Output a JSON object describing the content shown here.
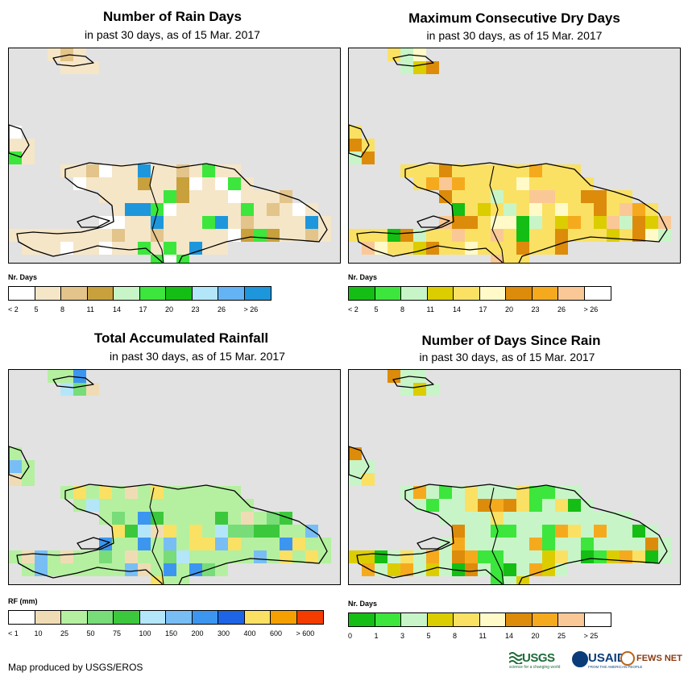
{
  "panels": [
    {
      "id": "rain-days",
      "title": "Number of Rain Days",
      "subtitle": "in past 30 days, as of 15 Mar. 2017",
      "legend_title": "Nr. Days",
      "legend_colors": [
        "#ffffff",
        "#f5e6c8",
        "#e3c48a",
        "#c8a03c",
        "#c8f5c8",
        "#3ce63c",
        "#14be14",
        "#b4e6fa",
        "#64b4f5",
        "#1e96dc"
      ],
      "legend_labels": [
        "< 2",
        "5",
        "8",
        "11",
        "14",
        "17",
        "20",
        "23",
        "26",
        "> 26"
      ],
      "base_color": "#f5e6c8",
      "accents": [
        "#e3c48a",
        "#c8a03c",
        "#ffffff",
        "#3ce63c",
        "#1e96dc"
      ]
    },
    {
      "id": "dry-days",
      "title": "Maximum Consecutive Dry Days",
      "subtitle": "in past 30 days, as of 15 Mar. 2017",
      "legend_title": "Nr. Days",
      "legend_colors": [
        "#14be14",
        "#3ce63c",
        "#c8f5c8",
        "#dccd00",
        "#fae164",
        "#fffac8",
        "#dc8c0a",
        "#f5aa1e",
        "#fac896",
        "#ffffff"
      ],
      "legend_labels": [
        "< 2",
        "5",
        "8",
        "11",
        "14",
        "17",
        "20",
        "23",
        "26",
        "> 26"
      ],
      "base_color": "#fae164",
      "accents": [
        "#fffac8",
        "#dc8c0a",
        "#f5aa1e",
        "#c8f5c8",
        "#14be14",
        "#dccd00",
        "#fac896"
      ]
    },
    {
      "id": "rainfall",
      "title": "Total Accumulated Rainfall",
      "subtitle": "in past 30 days, as of 15 Mar. 2017",
      "legend_title": "RF (mm)",
      "legend_colors": [
        "#ffffff",
        "#f0dcb4",
        "#b4f0a0",
        "#78dc78",
        "#3cc83c",
        "#b4e6fa",
        "#78bef5",
        "#3c96f0",
        "#1e64e6",
        "#fae164",
        "#f5a000",
        "#f53c00"
      ],
      "legend_labels": [
        "< 1",
        "10",
        "25",
        "50",
        "75",
        "100",
        "150",
        "200",
        "300",
        "400",
        "600",
        "> 600"
      ],
      "base_color": "#b4f0a0",
      "accents": [
        "#78dc78",
        "#3cc83c",
        "#b4e6fa",
        "#78bef5",
        "#3c96f0",
        "#f0dcb4",
        "#fae164"
      ]
    },
    {
      "id": "since-rain",
      "title": "Number of Days Since Rain",
      "subtitle": "in past 30 days, as of 15 Mar. 2017",
      "legend_title": "Nr. Days",
      "legend_colors": [
        "#14be14",
        "#3ce63c",
        "#c8f5c8",
        "#dccd00",
        "#fae164",
        "#fffac8",
        "#dc8c0a",
        "#f5aa1e",
        "#fac896",
        "#ffffff"
      ],
      "legend_labels": [
        "0",
        "1",
        "3",
        "5",
        "8",
        "11",
        "14",
        "20",
        "25",
        "> 25"
      ],
      "base_color": "#c8f5c8",
      "accents": [
        "#14be14",
        "#3ce63c",
        "#dccd00",
        "#fae164",
        "#f5aa1e",
        "#dc8c0a"
      ]
    }
  ],
  "credit": "Map produced by USGS/EROS",
  "logos": {
    "usgs": "USGS",
    "usgs_tagline": "science for a changing world",
    "usaid": "USAID",
    "usaid_tagline": "FROM THE AMERICAN PEOPLE",
    "fews": "FEWS NET"
  }
}
